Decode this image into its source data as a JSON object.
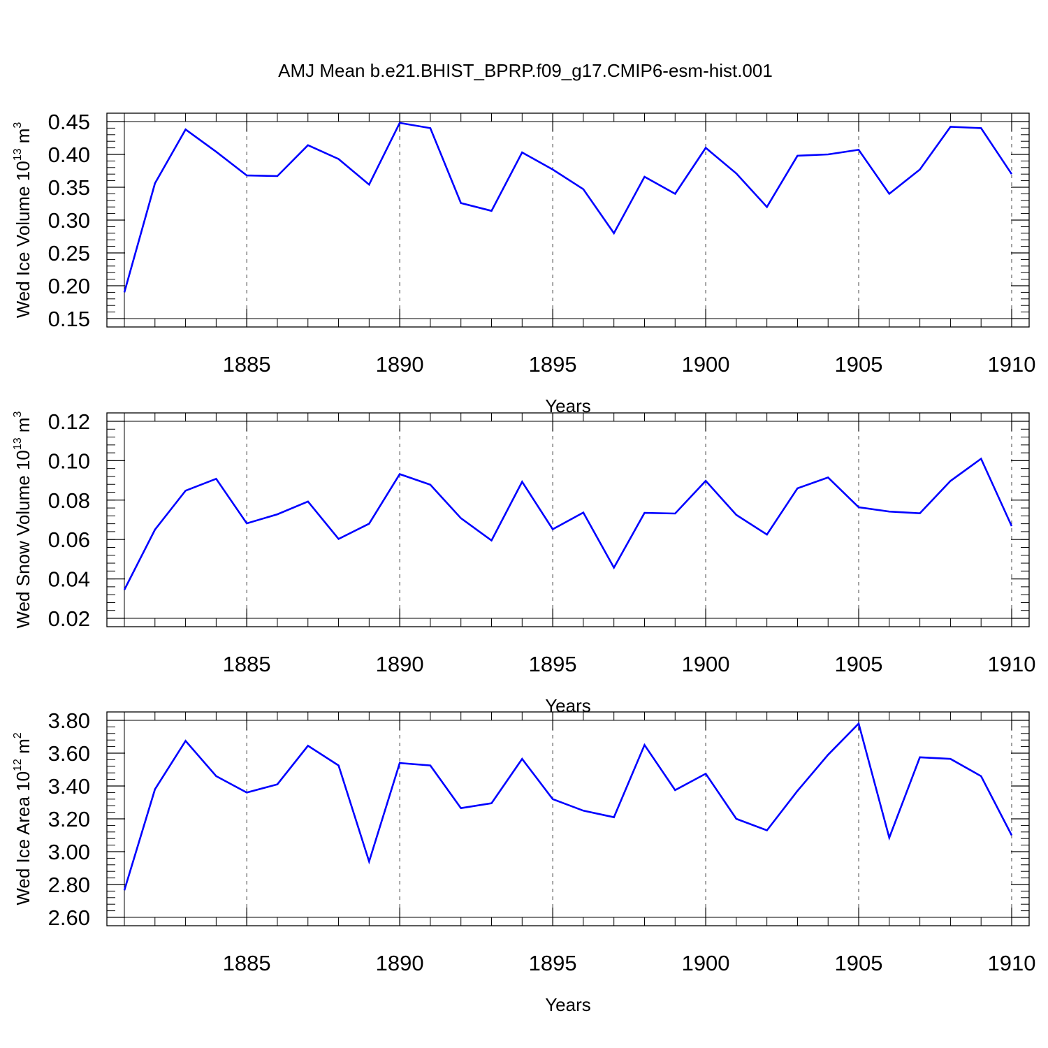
{
  "title": "AMJ Mean b.e21.BHIST_BPRP.f09_g17.CMIP6-esm-hist.001",
  "chart_data": [
    {
      "type": "line",
      "ylabel_main": "Wed Ice Volume 10",
      "ylabel_exp": "13",
      "ylabel_unit": " m",
      "ylabel_unit_exp": "3",
      "xlabel": "Years",
      "xlim": [
        1881,
        1910
      ],
      "ylim": [
        0.15,
        0.45
      ],
      "x_ticks": [
        1885,
        1890,
        1895,
        1900,
        1905,
        1910
      ],
      "x_tick_labels": [
        "1885",
        "1890",
        "1895",
        "1900",
        "1905",
        "1910"
      ],
      "y_ticks": [
        0.15,
        0.2,
        0.25,
        0.3,
        0.35,
        0.4,
        0.45
      ],
      "y_tick_labels": [
        "0.15",
        "0.20",
        "0.25",
        "0.30",
        "0.35",
        "0.40",
        "0.45"
      ],
      "grid": "vertical dashed at major x ticks",
      "color": "#0000ff",
      "x": [
        1881,
        1882,
        1883,
        1884,
        1885,
        1886,
        1887,
        1888,
        1889,
        1890,
        1891,
        1892,
        1893,
        1894,
        1895,
        1896,
        1897,
        1898,
        1899,
        1900,
        1901,
        1902,
        1903,
        1904,
        1905,
        1906,
        1907,
        1908,
        1909,
        1910
      ],
      "y": [
        0.19,
        0.356,
        0.438,
        0.404,
        0.368,
        0.367,
        0.414,
        0.393,
        0.354,
        0.448,
        0.44,
        0.326,
        0.314,
        0.403,
        0.377,
        0.347,
        0.28,
        0.366,
        0.34,
        0.41,
        0.371,
        0.32,
        0.398,
        0.4,
        0.407,
        0.34,
        0.377,
        0.442,
        0.44,
        0.37
      ]
    },
    {
      "type": "line",
      "ylabel_main": "Wed Snow Volume 10",
      "ylabel_exp": "13",
      "ylabel_unit": " m",
      "ylabel_unit_exp": "3",
      "xlabel": "Years",
      "xlim": [
        1881,
        1910
      ],
      "ylim": [
        0.02,
        0.12
      ],
      "x_ticks": [
        1885,
        1890,
        1895,
        1900,
        1905,
        1910
      ],
      "x_tick_labels": [
        "1885",
        "1890",
        "1895",
        "1900",
        "1905",
        "1910"
      ],
      "y_ticks": [
        0.02,
        0.04,
        0.06,
        0.08,
        0.1,
        0.12
      ],
      "y_tick_labels": [
        "0.02",
        "0.04",
        "0.06",
        "0.08",
        "0.10",
        "0.12"
      ],
      "grid": "vertical dashed at major x ticks",
      "color": "#0000ff",
      "x": [
        1881,
        1882,
        1883,
        1884,
        1885,
        1886,
        1887,
        1888,
        1889,
        1890,
        1891,
        1892,
        1893,
        1894,
        1895,
        1896,
        1897,
        1898,
        1899,
        1900,
        1901,
        1902,
        1903,
        1904,
        1905,
        1906,
        1907,
        1908,
        1909,
        1910
      ],
      "y": [
        0.0345,
        0.065,
        0.0848,
        0.0908,
        0.0682,
        0.0728,
        0.0793,
        0.0603,
        0.068,
        0.0932,
        0.0878,
        0.0708,
        0.0595,
        0.0893,
        0.0652,
        0.0737,
        0.0457,
        0.0735,
        0.0732,
        0.0898,
        0.0725,
        0.0625,
        0.086,
        0.0915,
        0.0764,
        0.0742,
        0.0733,
        0.0897,
        0.101,
        0.0668
      ]
    },
    {
      "type": "line",
      "ylabel_main": "Wed Ice Area 10",
      "ylabel_exp": "12",
      "ylabel_unit": " m",
      "ylabel_unit_exp": "2",
      "xlabel": "Years",
      "xlim": [
        1881,
        1910
      ],
      "ylim": [
        2.6,
        3.8
      ],
      "x_ticks": [
        1885,
        1890,
        1895,
        1900,
        1905,
        1910
      ],
      "x_tick_labels": [
        "1885",
        "1890",
        "1895",
        "1900",
        "1905",
        "1910"
      ],
      "y_ticks": [
        2.6,
        2.8,
        3.0,
        3.2,
        3.4,
        3.6,
        3.8
      ],
      "y_tick_labels": [
        "2.60",
        "2.80",
        "3.00",
        "3.20",
        "3.40",
        "3.60",
        "3.80"
      ],
      "grid": "vertical dashed at major x ticks",
      "color": "#0000ff",
      "x": [
        1881,
        1882,
        1883,
        1884,
        1885,
        1886,
        1887,
        1888,
        1889,
        1890,
        1891,
        1892,
        1893,
        1894,
        1895,
        1896,
        1897,
        1898,
        1899,
        1900,
        1901,
        1902,
        1903,
        1904,
        1905,
        1906,
        1907,
        1908,
        1909,
        1910
      ],
      "y": [
        2.765,
        3.38,
        3.675,
        3.46,
        3.36,
        3.41,
        3.645,
        3.525,
        2.94,
        3.54,
        3.525,
        3.265,
        3.295,
        3.565,
        3.32,
        3.25,
        3.21,
        3.65,
        3.375,
        3.475,
        3.2,
        3.13,
        3.37,
        3.59,
        3.78,
        3.085,
        3.575,
        3.565,
        3.46,
        3.1
      ]
    }
  ]
}
